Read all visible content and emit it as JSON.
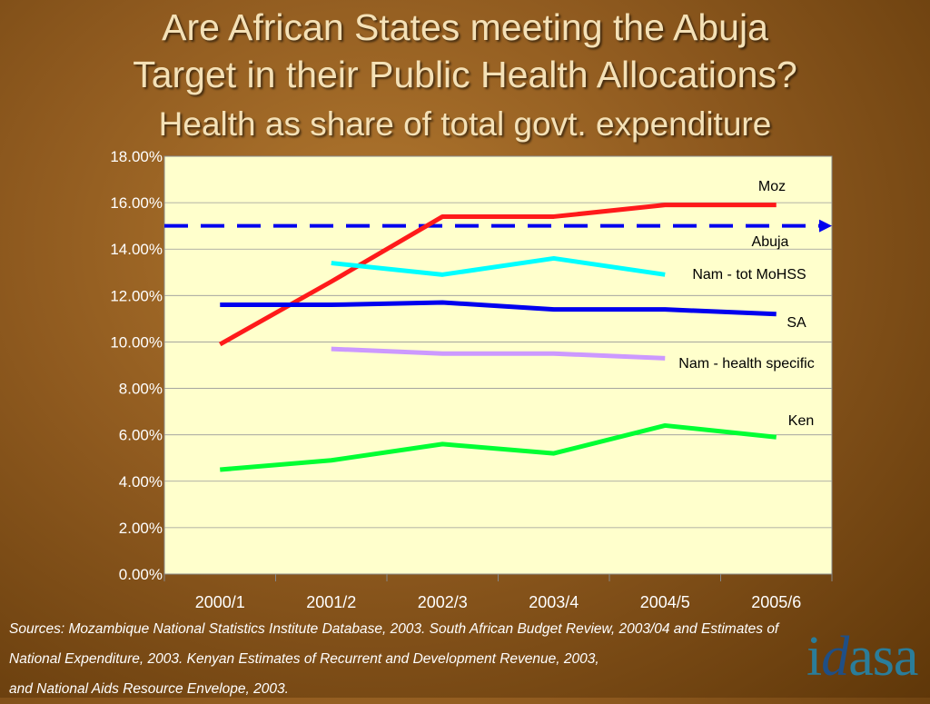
{
  "title_line1": "Are African States meeting the Abuja",
  "title_line2": "Target in their Public Health Allocations?",
  "subtitle": "Health as share of total govt. expenditure",
  "sources": [
    "Sources: Mozambique National Statistics Institute Database, 2003. South African Budget Review, 2003/04 and Estimates of",
    "National Expenditure, 2003. Kenyan Estimates of Recurrent and Development Revenue, 2003,",
    "and National Aids Resource Envelope, 2003."
  ],
  "logo": {
    "pre": "i",
    "mid": "d",
    "post": "asa"
  },
  "colors": {
    "plot_bg": "#ffffcc",
    "moz": "#ff1a1a",
    "nam_tot": "#00ffff",
    "sa": "#0000ee",
    "nam_health": "#cc99ff",
    "ken": "#00ff33",
    "abuja": "#0000ee"
  },
  "chart_data": {
    "type": "line",
    "title": "Health as share of total govt. expenditure",
    "categories": [
      "2000/1",
      "2001/2",
      "2002/3",
      "2003/4",
      "2004/5",
      "2005/6"
    ],
    "yticks": [
      "0.00%",
      "2.00%",
      "4.00%",
      "6.00%",
      "8.00%",
      "10.00%",
      "12.00%",
      "14.00%",
      "16.00%",
      "18.00%"
    ],
    "ylim": [
      0,
      18
    ],
    "grid": true,
    "series": [
      {
        "name": "Moz",
        "key": "moz",
        "values": [
          9.9,
          12.6,
          15.4,
          15.4,
          15.9,
          15.9
        ]
      },
      {
        "name": "Nam - tot MoHSS",
        "key": "nam_tot",
        "values": [
          null,
          13.4,
          12.9,
          13.6,
          12.9,
          null
        ]
      },
      {
        "name": "SA",
        "key": "sa",
        "values": [
          11.6,
          11.6,
          11.7,
          11.4,
          11.4,
          11.2
        ]
      },
      {
        "name": "Nam - health specific",
        "key": "nam_health",
        "values": [
          null,
          9.7,
          9.5,
          9.5,
          9.3,
          null
        ]
      },
      {
        "name": "Ken",
        "key": "ken",
        "values": [
          4.5,
          4.9,
          5.6,
          5.2,
          6.4,
          5.9
        ]
      }
    ],
    "reference_line": {
      "name": "Abuja",
      "value": 15.0,
      "style": "dashed-arrow"
    }
  }
}
